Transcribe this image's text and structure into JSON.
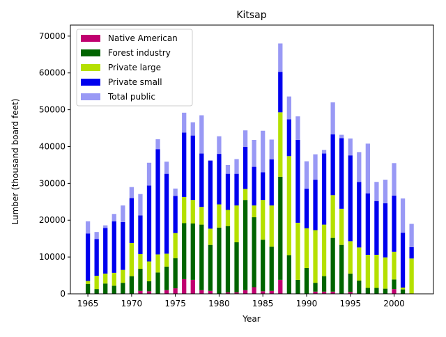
{
  "chart_data": {
    "type": "bar",
    "stacked": true,
    "title": "Kitsap",
    "xlabel": "Year",
    "ylabel": "Lumber (thousand board feet)",
    "xlim": [
      1963,
      2004.5
    ],
    "ylim": [
      0,
      73000
    ],
    "xticks": [
      1965,
      1970,
      1975,
      1980,
      1985,
      1990,
      1995,
      2000
    ],
    "yticks": [
      0,
      10000,
      20000,
      30000,
      40000,
      50000,
      60000,
      70000
    ],
    "legend": {
      "placement": "top-left"
    },
    "x": [
      1965,
      1966,
      1967,
      1968,
      1969,
      1970,
      1971,
      1972,
      1973,
      1974,
      1975,
      1976,
      1977,
      1978,
      1979,
      1980,
      1981,
      1982,
      1983,
      1984,
      1985,
      1986,
      1987,
      1988,
      1989,
      1990,
      1991,
      1992,
      1993,
      1994,
      1995,
      1996,
      1997,
      1998,
      1999,
      2000,
      2001,
      2002
    ],
    "series": [
      {
        "name": "Native American",
        "color": "#c0006f",
        "values": [
          0,
          0,
          0,
          0,
          0,
          0,
          800,
          700,
          0,
          1000,
          1500,
          4000,
          3800,
          1000,
          800,
          0,
          400,
          400,
          1000,
          1800,
          700,
          800,
          3800,
          0,
          0,
          0,
          600,
          600,
          600,
          0,
          500,
          0,
          0,
          0,
          0,
          1300,
          0,
          0
        ]
      },
      {
        "name": "Forest industry",
        "color": "#006400",
        "values": [
          2700,
          1300,
          2800,
          2200,
          3000,
          4800,
          6000,
          2700,
          5800,
          6400,
          8200,
          15200,
          15300,
          17800,
          12500,
          18000,
          18000,
          13600,
          24500,
          19000,
          14000,
          12000,
          28000,
          10500,
          3800,
          7000,
          2400,
          4200,
          14600,
          13300,
          5000,
          3600,
          1600,
          1600,
          1400,
          2600,
          1200,
          0
        ]
      },
      {
        "name": "Private large",
        "color": "#b5e000",
        "values": [
          800,
          3600,
          2700,
          3500,
          3500,
          9000,
          4000,
          5400,
          4900,
          3500,
          6800,
          7100,
          6400,
          4800,
          4400,
          6300,
          4400,
          10000,
          3000,
          3200,
          10800,
          11200,
          17500,
          26900,
          15500,
          10800,
          14300,
          14000,
          11600,
          9800,
          8800,
          9000,
          9000,
          9000,
          8500,
          7500,
          500,
          9600
        ]
      },
      {
        "name": "Private small",
        "color": "#0000ee",
        "values": [
          12900,
          10000,
          12400,
          14000,
          13000,
          12200,
          10500,
          20600,
          28600,
          21700,
          10100,
          17500,
          17500,
          14500,
          18500,
          13700,
          9800,
          8600,
          11400,
          10500,
          7500,
          12500,
          11000,
          10000,
          22500,
          10800,
          13700,
          19300,
          16500,
          19200,
          23300,
          17800,
          16700,
          14600,
          14700,
          15300,
          14900,
          3100
        ]
      },
      {
        "name": "Total public",
        "color": "#9999f5",
        "values": [
          3300,
          1900,
          700,
          2000,
          4500,
          3000,
          5800,
          6200,
          2700,
          3300,
          2000,
          5400,
          3600,
          10400,
          0,
          4800,
          2400,
          4000,
          4500,
          7300,
          11300,
          5400,
          7700,
          6200,
          6400,
          7400,
          6900,
          1000,
          8700,
          900,
          4600,
          8100,
          13500,
          5200,
          6400,
          8800,
          9300,
          6300
        ]
      }
    ]
  }
}
